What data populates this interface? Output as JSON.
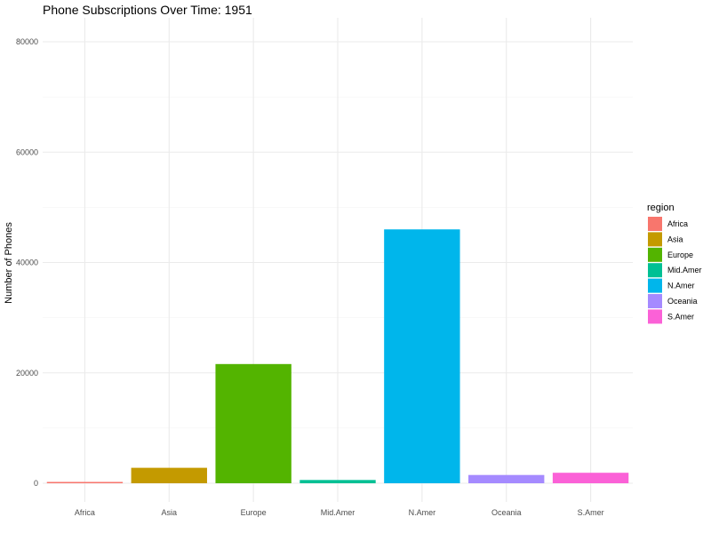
{
  "chart_data": {
    "type": "bar",
    "title": "Phone Subscriptions Over Time: 1951",
    "xlabel": "",
    "ylabel": "Number of Phones",
    "categories": [
      "Africa",
      "Asia",
      "Europe",
      "Mid.Amer",
      "N.Amer",
      "Oceania",
      "S.Amer"
    ],
    "values": [
      70,
      2800,
      21600,
      590,
      46000,
      1500,
      1900
    ],
    "ylim": [
      0,
      80000
    ],
    "yticks": [
      0,
      20000,
      40000,
      60000,
      80000
    ],
    "ytick_labels": [
      "0",
      "20000",
      "40000",
      "60000",
      "80000"
    ],
    "grid": true,
    "legend": {
      "title": "region",
      "placement": "right",
      "entries": [
        "Africa",
        "Asia",
        "Europe",
        "Mid.Amer",
        "N.Amer",
        "Oceania",
        "S.Amer"
      ]
    },
    "colors": [
      "#F8766D",
      "#C49A00",
      "#53B400",
      "#00C094",
      "#00B6EB",
      "#A58AFF",
      "#FB61D7"
    ]
  }
}
